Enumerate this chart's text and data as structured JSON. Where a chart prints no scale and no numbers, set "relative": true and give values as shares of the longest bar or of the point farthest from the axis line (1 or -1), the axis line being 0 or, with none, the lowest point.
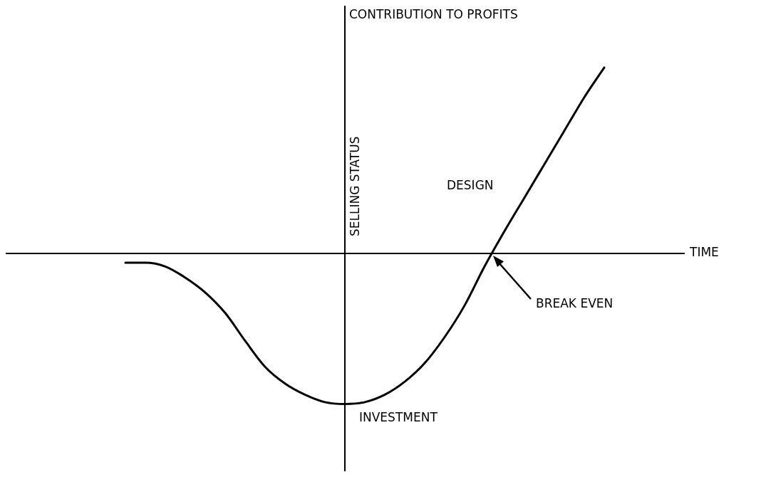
{
  "chart_data": {
    "type": "line",
    "relative": true,
    "xlabel": "TIME",
    "ylabel": "CONTRIBUTION TO PROFITS",
    "annotations": [
      "SELLING STATUS",
      "DESIGN",
      "BREAK EVEN",
      "INVESTMENT"
    ],
    "categories": [
      null,
      null,
      null,
      null,
      null,
      null,
      null,
      null,
      null,
      null,
      null,
      null,
      null,
      null,
      null,
      null,
      null,
      null,
      null,
      null,
      null,
      null,
      null,
      null,
      null,
      null,
      null,
      null,
      null,
      null,
      null,
      null,
      null,
      null,
      null
    ],
    "color": "#000000",
    "values": [
      null,
      null,
      null,
      null,
      null,
      null,
      -0.05,
      -0.05,
      -0.07,
      -0.13,
      -0.21,
      -0.32,
      -0.47,
      -0.61,
      -0.7,
      -0.76,
      -0.8,
      -0.81,
      -0.8,
      -0.76,
      -0.69,
      -0.59,
      -0.45,
      -0.28,
      -0.07,
      0.12,
      0.3,
      0.48,
      0.66,
      0.84,
      1,
      null,
      null,
      null,
      null
    ]
  }
}
